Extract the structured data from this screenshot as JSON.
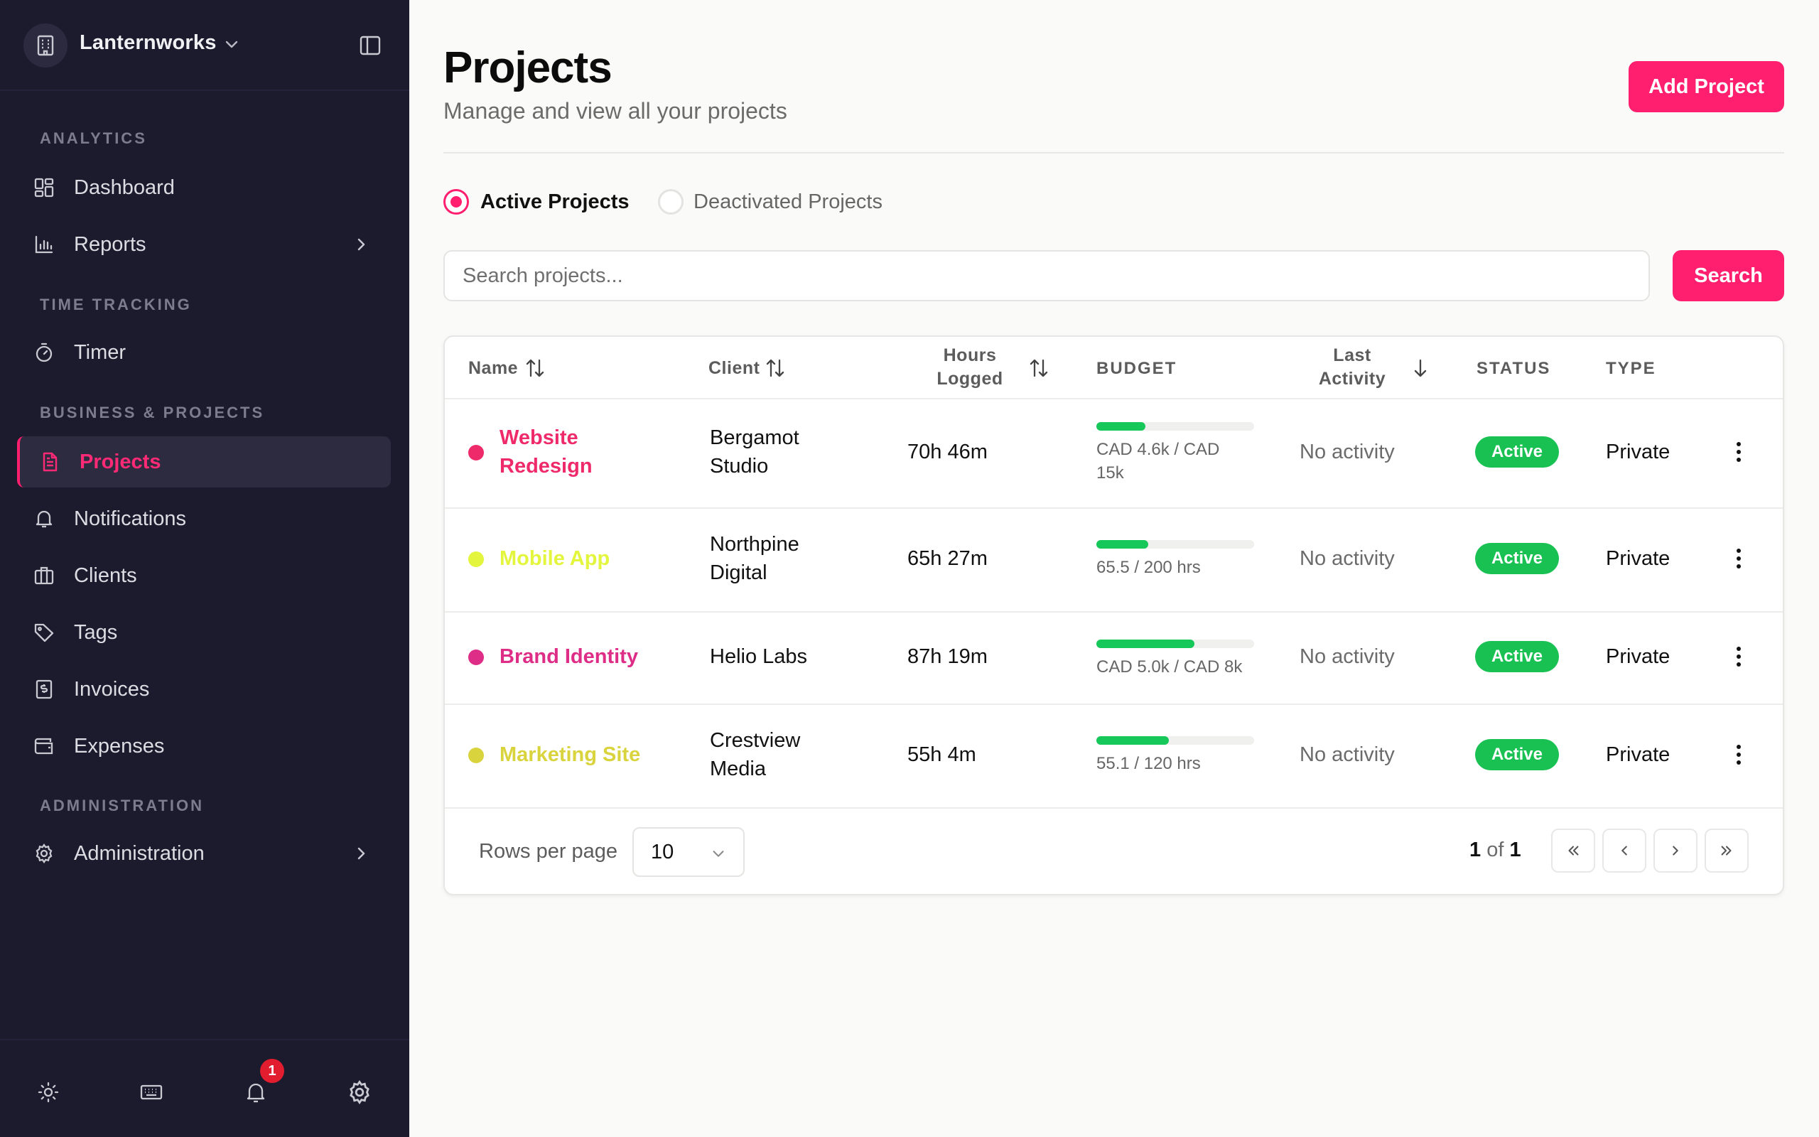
{
  "workspace": {
    "name": "Lanternworks"
  },
  "sidebar": {
    "sections": [
      {
        "label": "ANALYTICS"
      },
      {
        "label": "TIME TRACKING"
      },
      {
        "label": "BUSINESS & PROJECTS"
      },
      {
        "label": "ADMINISTRATION"
      }
    ],
    "items": [
      {
        "label": "Dashboard",
        "icon": "dashboard-icon"
      },
      {
        "label": "Reports",
        "icon": "bar-chart-icon"
      },
      {
        "label": "Timer",
        "icon": "stopwatch-icon"
      },
      {
        "label": "Projects",
        "icon": "document-icon"
      },
      {
        "label": "Notifications",
        "icon": "bell-icon"
      },
      {
        "label": "Clients",
        "icon": "briefcase-icon"
      },
      {
        "label": "Tags",
        "icon": "tag-icon"
      },
      {
        "label": "Invoices",
        "icon": "invoice-icon"
      },
      {
        "label": "Expenses",
        "icon": "wallet-icon"
      },
      {
        "label": "Administration",
        "icon": "gear-icon"
      }
    ],
    "footer": {
      "notification_count": "1"
    }
  },
  "header": {
    "title": "Projects",
    "subtitle": "Manage and view all your projects",
    "add_label": "Add Project"
  },
  "filters": {
    "active_label": "Active Projects",
    "deactivated_label": "Deactivated Projects",
    "selected": "active"
  },
  "search": {
    "placeholder": "Search projects...",
    "button_label": "Search"
  },
  "table": {
    "headers": {
      "name": "Name",
      "client": "Client",
      "hours_line1": "Hours",
      "hours_line2": "Logged",
      "budget": "BUDGET",
      "activity_line1": "Last",
      "activity_line2": "Activity",
      "status": "STATUS",
      "type": "TYPE"
    },
    "rows": [
      {
        "name_line1": "Website",
        "name_line2": "Redesign",
        "color": "#ee2a6b",
        "client_line1": "Bergamot",
        "client_line2": "Studio",
        "hours": "70h 46m",
        "budget_line1": "CAD 4.6k / CAD",
        "budget_line2": "15k",
        "budget_progress": 0.31,
        "activity": "No activity",
        "status": "Active",
        "type": "Private"
      },
      {
        "name_line1": "Mobile App",
        "name_line2": "",
        "color": "#e3f53c",
        "client_line1": "Northpine",
        "client_line2": "Digital",
        "hours": "65h 27m",
        "budget_line1": "65.5 / 200 hrs",
        "budget_line2": "",
        "budget_progress": 0.33,
        "activity": "No activity",
        "status": "Active",
        "type": "Private"
      },
      {
        "name_line1": "Brand Identity",
        "name_line2": "",
        "color": "#de2d86",
        "client_line1": "Helio Labs",
        "client_line2": "",
        "hours": "87h 19m",
        "budget_line1": "CAD 5.0k / CAD 8k",
        "budget_line2": "",
        "budget_progress": 0.62,
        "activity": "No activity",
        "status": "Active",
        "type": "Private"
      },
      {
        "name_line1": "Marketing Site",
        "name_line2": "",
        "color": "#d9d43e",
        "client_line1": "Crestview",
        "client_line2": "Media",
        "hours": "55h 4m",
        "budget_line1": "55.1 / 120 hrs",
        "budget_line2": "",
        "budget_progress": 0.46,
        "activity": "No activity",
        "status": "Active",
        "type": "Private"
      }
    ]
  },
  "pagination": {
    "rows_per_page_label": "Rows per page",
    "rows_per_page_value": "10",
    "current": "1",
    "of_label": "of",
    "total": "1"
  }
}
